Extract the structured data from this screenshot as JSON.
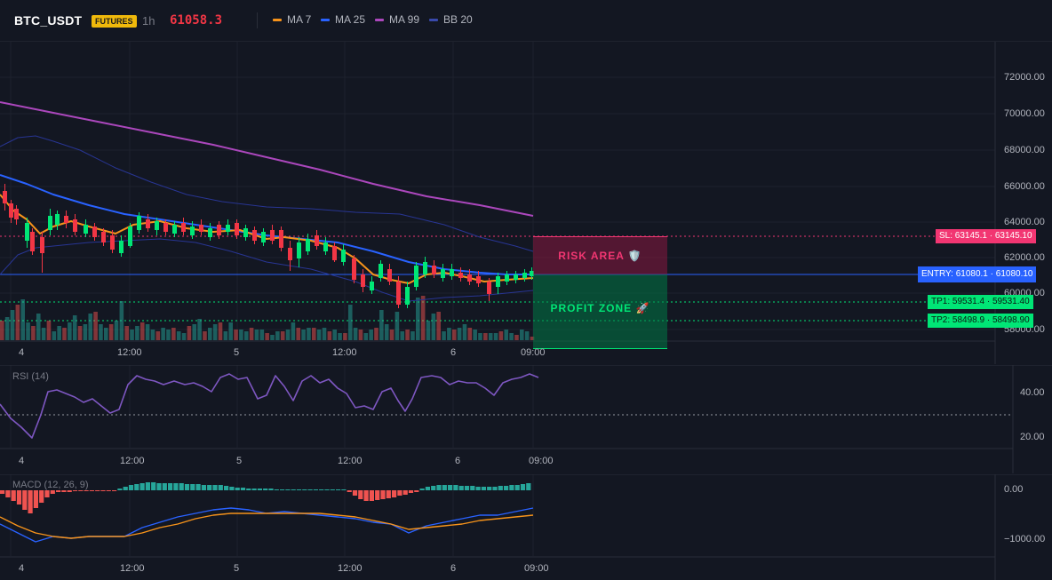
{
  "header": {
    "symbol": "BTC_USDT",
    "badge": "FUTURES",
    "timeframe": "1h",
    "last_price": "61058.3",
    "indicators": [
      {
        "label": "MA 7",
        "color": "#f7931a"
      },
      {
        "label": "MA 25",
        "color": "#2962ff"
      },
      {
        "label": "MA 99",
        "color": "#ab47bc"
      },
      {
        "label": "BB 20",
        "color": "#3949ab"
      }
    ]
  },
  "price_axis": [
    "72000.00",
    "70000.00",
    "68000.00",
    "66000.00",
    "64000.00",
    "62000.00",
    "60000.00",
    "58000.00"
  ],
  "time_axis": [
    "4",
    "12:00",
    "5",
    "12:00",
    "6",
    "09:00"
  ],
  "levels": {
    "sl": {
      "left": "SL: 63145.1",
      "right": "63145.10",
      "color": "#f23672"
    },
    "entry": {
      "left": "ENTRY: 61080.1",
      "right": "61080.10",
      "color": "#2962ff"
    },
    "tp1": {
      "left": "TP1: 59531.4",
      "right": "59531.40",
      "color": "#00e676"
    },
    "tp2": {
      "left": "TP2: 58498.9",
      "right": "58498.90",
      "color": "#00e676"
    }
  },
  "zones": {
    "risk": "RISK AREA 🛡️",
    "profit": "PROFIT ZONE 🚀"
  },
  "rsi": {
    "title": "RSI (14)",
    "axis": [
      "40.00",
      "20.00"
    ]
  },
  "macd": {
    "title": "MACD (12, 26, 9)",
    "axis": [
      "0.00",
      "−1000.00"
    ]
  },
  "colors": {
    "bg": "#131722",
    "up": "#00e676",
    "down": "#f23645",
    "ma7": "#f7931a",
    "ma25": "#2962ff",
    "ma99": "#ab47bc",
    "bb": "#283593",
    "rsi": "#7e57c2"
  }
}
